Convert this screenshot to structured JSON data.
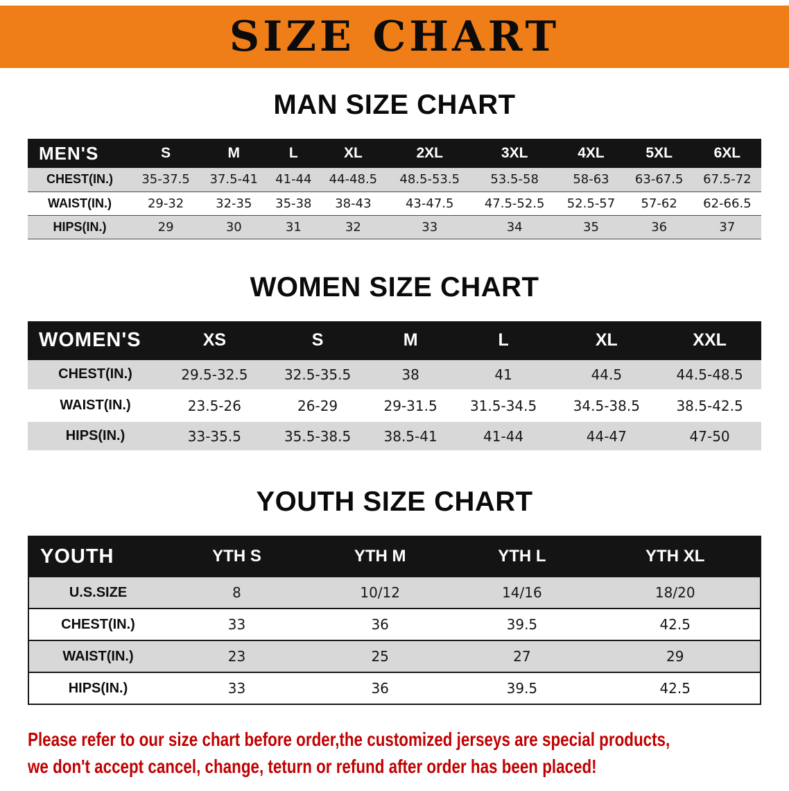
{
  "banner": {
    "title": "SIZE CHART"
  },
  "colors": {
    "banner_bg": "#F07E18",
    "table_header_bg": "#141414",
    "table_header_text": "#FFFFFF",
    "row_stripe": "#D8D8D8",
    "footer_text": "#C00000",
    "text": "#0D0D0D"
  },
  "chart_data": [
    {
      "type": "table",
      "title": "MAN SIZE CHART",
      "corner_label": "MEN'S",
      "columns": [
        "S",
        "M",
        "L",
        "XL",
        "2XL",
        "3XL",
        "4XL",
        "5XL",
        "6XL"
      ],
      "rows": [
        {
          "label": "CHEST(IN.)",
          "values": [
            "35-37.5",
            "37.5-41",
            "41-44",
            "44-48.5",
            "48.5-53.5",
            "53.5-58",
            "58-63",
            "63-67.5",
            "67.5-72"
          ]
        },
        {
          "label": "WAIST(IN.)",
          "values": [
            "29-32",
            "32-35",
            "35-38",
            "38-43",
            "43-47.5",
            "47.5-52.5",
            "52.5-57",
            "57-62",
            "62-66.5"
          ]
        },
        {
          "label": "HIPS(IN.)",
          "values": [
            "29",
            "30",
            "31",
            "32",
            "33",
            "34",
            "35",
            "36",
            "37"
          ]
        }
      ]
    },
    {
      "type": "table",
      "title": "WOMEN SIZE CHART",
      "corner_label": "WOMEN'S",
      "columns": [
        "XS",
        "S",
        "M",
        "L",
        "XL",
        "XXL"
      ],
      "rows": [
        {
          "label": "CHEST(IN.)",
          "values": [
            "29.5-32.5",
            "32.5-35.5",
            "38",
            "41",
            "44.5",
            "44.5-48.5"
          ]
        },
        {
          "label": "WAIST(IN.)",
          "values": [
            "23.5-26",
            "26-29",
            "29-31.5",
            "31.5-34.5",
            "34.5-38.5",
            "38.5-42.5"
          ]
        },
        {
          "label": "HIPS(IN.)",
          "values": [
            "33-35.5",
            "35.5-38.5",
            "38.5-41",
            "41-44",
            "44-47",
            "47-50"
          ]
        }
      ]
    },
    {
      "type": "table",
      "title": "YOUTH SIZE CHART",
      "corner_label": "YOUTH",
      "columns": [
        "YTH S",
        "YTH M",
        "YTH L",
        "YTH XL"
      ],
      "rows": [
        {
          "label": "U.S.SIZE",
          "values": [
            "8",
            "10/12",
            "14/16",
            "18/20"
          ]
        },
        {
          "label": "CHEST(IN.)",
          "values": [
            "33",
            "36",
            "39.5",
            "42.5"
          ]
        },
        {
          "label": "WAIST(IN.)",
          "values": [
            "23",
            "25",
            "27",
            "29"
          ]
        },
        {
          "label": "HIPS(IN.)",
          "values": [
            "33",
            "36",
            "39.5",
            "42.5"
          ]
        }
      ]
    }
  ],
  "footer": {
    "line1": "Please refer to our size chart before order,the customized jerseys are special products,",
    "line2": "we don't accept cancel, change, teturn or refund after order has been placed!"
  }
}
